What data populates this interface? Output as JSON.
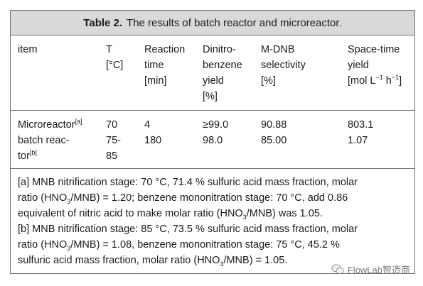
{
  "caption": {
    "label": "Table 2.",
    "text": "The results of batch reactor and microreactor."
  },
  "headers": {
    "item": [
      "item"
    ],
    "T": [
      "T",
      "[°C]"
    ],
    "reaction_time": [
      "Reaction",
      "time",
      "[min]"
    ],
    "dnb_yield": [
      "Dinitro-",
      "benzene",
      "yield",
      "[%]"
    ],
    "mdnb_selectivity": [
      "M-DNB",
      "selectivity",
      "[%]"
    ],
    "sty": [
      "Space-time",
      "yield",
      "[mol L",
      "−1",
      " h",
      "−1",
      "]"
    ]
  },
  "rows": [
    {
      "item_lines": [
        "Microreactor",
        "[a]"
      ],
      "T": "70",
      "time": "4",
      "yield": "≥99.0",
      "selectivity": "90.88",
      "sty": "803.1"
    },
    {
      "item_lines": [
        "batch reac-",
        "tor",
        "[b]"
      ],
      "T_lines": [
        "75-",
        "85"
      ],
      "time": "180",
      "yield": "98.0",
      "selectivity": "85.00",
      "sty": "1.07"
    }
  ],
  "footnotes": {
    "a": {
      "line1": "[a] MNB nitrification stage: 70 °C, 71.4 % sulfuric acid mass fraction, molar",
      "line2_pre": "ratio (HNO",
      "line2_sub": "3",
      "line2_post": "/MNB) = 1.20; benzene mononitration stage: 70 °C, add 0.86",
      "line3_pre": "equivalent of nitric acid to make molar ratio (HNO",
      "line3_sub": "3",
      "line3_post": "/MNB) was 1.05."
    },
    "b": {
      "line1": "[b] MNB nitrification stage: 85 °C, 73.5 % sulfuric acid mass fraction, molar",
      "line2_pre": "ratio (HNO",
      "line2_sub": "3",
      "line2_post": "/MNB) = 1.08, benzene mononitration stage: 75 °C, 45.2 %",
      "line3_pre": "sulfuric acid mass fraction, molar ratio (HNO",
      "line3_sub": "3",
      "line3_post": "/MNB) = 1.05."
    }
  },
  "watermark": {
    "text": "FlowLab智造商",
    "icon": "wechat-icon"
  }
}
